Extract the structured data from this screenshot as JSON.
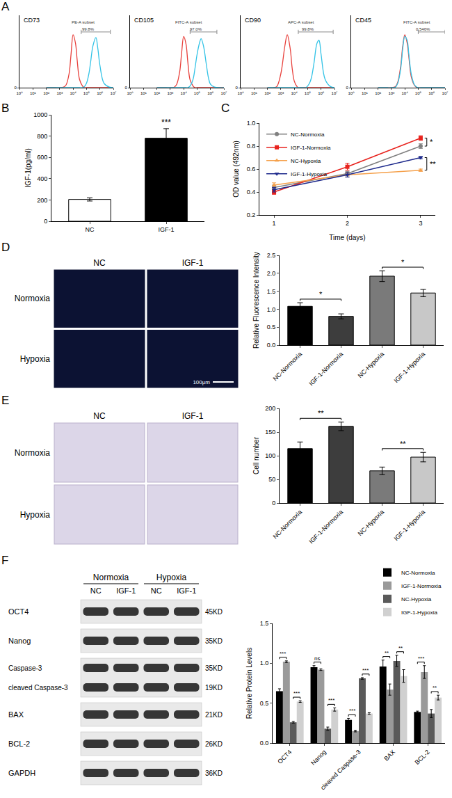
{
  "panel_labels": [
    "A",
    "B",
    "C",
    "D",
    "E",
    "F"
  ],
  "chart_data": [
    {
      "type": "line",
      "title": "CD73",
      "log": "x",
      "x": [
        100,
        300,
        500,
        1000,
        2000,
        3000,
        5000,
        7000,
        10000,
        15000,
        20000,
        30000,
        50000,
        70000,
        100000,
        150000,
        200000,
        300000,
        500000,
        700000,
        1000000,
        2000000,
        5000000,
        10000000
      ],
      "series": [
        {
          "color": "#e8413c",
          "values": [
            0,
            0,
            0,
            0,
            1,
            5,
            25,
            60,
            95,
            80,
            50,
            15,
            3,
            0,
            0,
            0,
            0,
            0,
            0,
            0,
            0,
            0,
            0,
            0
          ]
        },
        {
          "color": "#33c3e6",
          "values": [
            0,
            0,
            0,
            0,
            0,
            0,
            0,
            0,
            0,
            0,
            0,
            0,
            0,
            2,
            8,
            25,
            45,
            75,
            90,
            70,
            40,
            8,
            1,
            0
          ]
        }
      ],
      "xlim": [
        1,
        10000000
      ],
      "xticks": [
        {
          "value": 1,
          "label": "10⁰"
        },
        {
          "value": 10,
          "label": "10¹"
        },
        {
          "value": 100,
          "label": "10²"
        },
        {
          "value": 1000,
          "label": "10³"
        },
        {
          "value": 10000,
          "label": "10⁴"
        },
        {
          "value": 100000,
          "label": "10⁵"
        },
        {
          "value": 1000000,
          "label": "10⁶"
        },
        {
          "value": 10000000,
          "label": "10⁷"
        }
      ],
      "ylim": [
        0,
        130
      ],
      "yticks": [
        0
      ],
      "gate": [
        40000,
        6000000
      ],
      "annotations": [
        "PE-A subset",
        "99.8%"
      ]
    },
    {
      "type": "line",
      "title": "CD105",
      "log": "x",
      "x": [
        100,
        300,
        500,
        1000,
        2000,
        3000,
        5000,
        7000,
        10000,
        15000,
        20000,
        30000,
        50000,
        70000,
        100000,
        150000,
        200000,
        300000,
        500000,
        700000,
        1000000,
        2000000,
        5000000,
        10000000
      ],
      "series": [
        {
          "color": "#e8413c",
          "values": [
            0,
            0,
            0,
            0,
            1,
            6,
            28,
            62,
            92,
            78,
            48,
            14,
            3,
            0,
            0,
            0,
            0,
            0,
            0,
            0,
            0,
            0,
            0,
            0
          ]
        },
        {
          "color": "#33c3e6",
          "values": [
            0,
            0,
            0,
            0,
            0,
            0,
            0,
            0,
            0,
            0,
            0,
            3,
            15,
            35,
            60,
            80,
            88,
            75,
            40,
            18,
            6,
            1,
            0,
            0
          ]
        }
      ],
      "xlim": [
        1,
        10000000
      ],
      "xticks": [
        {
          "value": 1,
          "label": "10⁰"
        },
        {
          "value": 10,
          "label": "10¹"
        },
        {
          "value": 100,
          "label": "10²"
        },
        {
          "value": 1000,
          "label": "10³"
        },
        {
          "value": 10000,
          "label": "10⁴"
        },
        {
          "value": 100000,
          "label": "10⁵"
        },
        {
          "value": 1000000,
          "label": "10⁶"
        },
        {
          "value": 10000000,
          "label": "10⁷"
        }
      ],
      "ylim": [
        0,
        130
      ],
      "yticks": [
        0
      ],
      "gate": [
        30000,
        3000000
      ],
      "annotations": [
        "FITC-A subset",
        "97.0%"
      ]
    },
    {
      "type": "line",
      "title": "CD90",
      "log": "x",
      "x": [
        100,
        300,
        500,
        1000,
        2000,
        3000,
        5000,
        7000,
        10000,
        15000,
        20000,
        30000,
        50000,
        70000,
        100000,
        150000,
        200000,
        300000,
        500000,
        700000,
        1000000,
        2000000,
        5000000,
        10000000
      ],
      "series": [
        {
          "color": "#e8413c",
          "values": [
            0,
            0,
            2,
            25,
            75,
            95,
            70,
            35,
            12,
            3,
            0,
            0,
            0,
            0,
            0,
            0,
            0,
            0,
            0,
            0,
            0,
            0,
            0,
            0
          ]
        },
        {
          "color": "#33c3e6",
          "values": [
            0,
            0,
            0,
            0,
            0,
            0,
            0,
            0,
            0,
            0,
            0,
            0,
            0,
            0,
            3,
            10,
            20,
            45,
            80,
            85,
            60,
            15,
            2,
            0
          ]
        }
      ],
      "xlim": [
        1,
        10000000
      ],
      "xticks": [
        {
          "value": 1,
          "label": "10⁰"
        },
        {
          "value": 10,
          "label": "10¹"
        },
        {
          "value": 100,
          "label": "10²"
        },
        {
          "value": 1000,
          "label": "10³"
        },
        {
          "value": 10000,
          "label": "10⁴"
        },
        {
          "value": 100000,
          "label": "10⁵"
        },
        {
          "value": 1000000,
          "label": "10⁶"
        },
        {
          "value": 10000000,
          "label": "10⁷"
        }
      ],
      "ylim": [
        0,
        130
      ],
      "yticks": [
        0
      ],
      "gate": [
        20000,
        8000000
      ],
      "annotations": [
        "APC-A subset",
        "99.8%"
      ]
    },
    {
      "type": "line",
      "title": "CD45",
      "log": "x",
      "x": [
        100,
        300,
        500,
        1000,
        2000,
        3000,
        5000,
        7000,
        10000,
        15000,
        20000,
        30000,
        50000,
        70000,
        100000,
        150000,
        200000,
        300000,
        500000,
        700000,
        1000000,
        2000000,
        5000000,
        10000000
      ],
      "series": [
        {
          "color": "#e8413c",
          "values": [
            0,
            0,
            0,
            0,
            2,
            10,
            40,
            75,
            95,
            80,
            55,
            20,
            5,
            1,
            0,
            0,
            0,
            0,
            0,
            0,
            0,
            0,
            0,
            0
          ]
        },
        {
          "color": "#33c3e6",
          "values": [
            0,
            0,
            0,
            0,
            1,
            8,
            35,
            70,
            92,
            85,
            60,
            25,
            6,
            2,
            0,
            0,
            0,
            0,
            0,
            0,
            0,
            0,
            0,
            0
          ]
        }
      ],
      "xlim": [
        1,
        10000000
      ],
      "xticks": [
        {
          "value": 1,
          "label": "10⁰"
        },
        {
          "value": 10,
          "label": "10¹"
        },
        {
          "value": 100,
          "label": "10²"
        },
        {
          "value": 1000,
          "label": "10³"
        },
        {
          "value": 10000,
          "label": "10⁴"
        },
        {
          "value": 100000,
          "label": "10⁵"
        },
        {
          "value": 1000000,
          "label": "10⁶"
        },
        {
          "value": 10000000,
          "label": "10⁷"
        }
      ],
      "ylim": [
        0,
        130
      ],
      "yticks": [
        0
      ],
      "gate": [
        100000,
        10000000
      ],
      "annotations": [
        "FITC-A subset",
        "0.546%"
      ]
    },
    {
      "type": "bar",
      "categories": [
        "NC",
        "IGF-1"
      ],
      "values": [
        205,
        780
      ],
      "errors": [
        15,
        90
      ],
      "colors": [
        "#ffffff",
        "#000000"
      ],
      "ylabel": "IGF-1(pg/ml)",
      "ylim": [
        0,
        1000
      ],
      "yticks": [
        0,
        200,
        400,
        600,
        800,
        1000
      ],
      "annotations": [
        {
          "category": "IGF-1",
          "text": "***"
        }
      ]
    },
    {
      "type": "line",
      "x": [
        1,
        2,
        3
      ],
      "xlabel": "Time (days)",
      "ylabel": "OD value (492nm)",
      "xlim": [
        0.8,
        3.2
      ],
      "xticks": [
        1,
        2,
        3
      ],
      "ylim": [
        0.2,
        1.0
      ],
      "yticks": [
        0.2,
        0.4,
        0.6,
        0.8,
        {
          "value": 1.0,
          "label": "1.0"
        }
      ],
      "legend": "top left",
      "series": [
        {
          "name": "NC-Normoxia",
          "color": "#808080",
          "marker": "circle",
          "values": [
            0.44,
            0.56,
            0.8
          ],
          "errors": [
            0.02,
            0.02,
            0.02
          ]
        },
        {
          "name": "IGF-1-Normoxia",
          "color": "#e8231e",
          "marker": "square",
          "values": [
            0.4,
            0.62,
            0.87
          ],
          "errors": [
            0.02,
            0.03,
            0.02
          ]
        },
        {
          "name": "NC-Hypoxia",
          "color": "#f5a04a",
          "marker": "triangle-up",
          "values": [
            0.46,
            0.55,
            0.59
          ],
          "errors": [
            0.02,
            0.02,
            0.01
          ]
        },
        {
          "name": "IGF-1-Hypoxia",
          "color": "#1e2a8c",
          "marker": "triangle-down",
          "values": [
            0.42,
            0.55,
            0.7
          ],
          "errors": [
            0.02,
            0.02,
            0.01
          ]
        }
      ],
      "annotations": [
        {
          "text": "*",
          "between": [
            1,
            0
          ]
        },
        {
          "text": "**",
          "between": [
            3,
            2
          ]
        }
      ]
    },
    {
      "type": "bar",
      "categories": [
        "NC-Normoxia",
        "IGF-1-Normoxia",
        "NC-Hypoxia",
        "IGF-1-Hypoxia"
      ],
      "values": [
        1.08,
        0.8,
        1.92,
        1.45
      ],
      "errors": [
        0.1,
        0.07,
        0.15,
        0.1
      ],
      "colors": [
        "#000000",
        "#3d3d3d",
        "#7a7a7a",
        "#c8c8c8"
      ],
      "ylabel": "Relative Fluorescence Intensity",
      "ylim": [
        0,
        2.5
      ],
      "yticks": [
        {
          "value": 0,
          "label": "0.0"
        },
        0.5,
        {
          "value": 1,
          "label": "1.0"
        },
        1.5,
        {
          "value": 2,
          "label": "2.0"
        },
        2.5
      ],
      "annotations": [
        {
          "between": [
            0,
            1
          ],
          "text": "*"
        },
        {
          "between": [
            2,
            3
          ],
          "text": "*"
        }
      ]
    },
    {
      "type": "bar",
      "categories": [
        "NC-Normoxia",
        "IGF-1-Normoxia",
        "NC-Hypoxia",
        "IGF-1-Hypoxia"
      ],
      "values": [
        115,
        162,
        68,
        97
      ],
      "errors": [
        14,
        9,
        8,
        10
      ],
      "colors": [
        "#000000",
        "#3d3d3d",
        "#7a7a7a",
        "#c8c8c8"
      ],
      "ylabel": "Cell number",
      "ylim": [
        0,
        200
      ],
      "yticks": [
        0,
        50,
        100,
        150,
        200
      ],
      "annotations": [
        {
          "between": [
            0,
            1
          ],
          "text": "**"
        },
        {
          "between": [
            2,
            3
          ],
          "text": "**"
        }
      ]
    },
    {
      "type": "bar",
      "categories": [
        "OCT4",
        "Nanog",
        "cleaved Caspase-3",
        "BAX",
        "BCL-2"
      ],
      "ylabel": "Relative Protein Levels",
      "legend": "top right",
      "ylim": [
        0,
        1.5
      ],
      "yticks": [
        {
          "value": 0,
          "label": "0.0"
        },
        0.5,
        {
          "value": 1,
          "label": "1.0"
        },
        1.5
      ],
      "series": [
        {
          "name": "NC-Normoxia",
          "color": "#000000",
          "values": [
            0.65,
            0.95,
            0.29,
            0.96,
            0.39
          ],
          "errors": [
            0.03,
            0.02,
            0.02,
            0.08,
            0.01
          ]
        },
        {
          "name": "IGF-1-Normoxia",
          "color": "#9a9a9a",
          "values": [
            1.02,
            0.92,
            0.15,
            0.67,
            0.89
          ],
          "errors": [
            0.01,
            0.01,
            0.01,
            0.07,
            0.08
          ]
        },
        {
          "name": "NC-Hypoxia",
          "color": "#5a5a5a",
          "values": [
            0.26,
            0.18,
            0.81,
            1.03,
            0.37
          ],
          "errors": [
            0.01,
            0.02,
            0.01,
            0.07,
            0.05
          ]
        },
        {
          "name": "IGF-1-Hypoxia",
          "color": "#d0d0d0",
          "values": [
            0.52,
            0.42,
            0.37,
            0.84,
            0.57
          ],
          "errors": [
            0.01,
            0.02,
            0.01,
            0.08,
            0.03
          ]
        }
      ],
      "annotations": [
        {
          "category": "OCT4",
          "between": [
            0,
            1
          ],
          "text": "***"
        },
        {
          "category": "OCT4",
          "between": [
            2,
            3
          ],
          "text": "***"
        },
        {
          "category": "Nanog",
          "between": [
            0,
            1
          ],
          "text": "ns"
        },
        {
          "category": "Nanog",
          "between": [
            2,
            3
          ],
          "text": "***"
        },
        {
          "category": "cleaved Caspase-3",
          "between": [
            0,
            1
          ],
          "text": "***"
        },
        {
          "category": "cleaved Caspase-3",
          "between": [
            2,
            3
          ],
          "text": "***"
        },
        {
          "category": "BAX",
          "between": [
            0,
            1
          ],
          "text": "**"
        },
        {
          "category": "BAX",
          "between": [
            2,
            3
          ],
          "text": "**"
        },
        {
          "category": "BCL-2",
          "between": [
            0,
            1
          ],
          "text": "***"
        },
        {
          "category": "BCL-2",
          "between": [
            2,
            3
          ],
          "text": "**"
        }
      ]
    }
  ],
  "micrographs": {
    "D": {
      "columns": [
        "NC",
        "IGF-1"
      ],
      "rows": [
        "Normoxia",
        "Hypoxia"
      ],
      "scale_bar": "100μm"
    },
    "E": {
      "columns": [
        "NC",
        "IGF-1"
      ],
      "rows": [
        "Normoxia",
        "Hypoxia"
      ]
    }
  },
  "blot": {
    "groups": [
      "Normoxia",
      "Hypoxia"
    ],
    "lanes": [
      "NC",
      "IGF-1",
      "NC",
      "IGF-1"
    ],
    "rows": [
      {
        "labels": [
          "OCT4"
        ],
        "sizes": [
          "45KD"
        ]
      },
      {
        "labels": [
          "Nanog"
        ],
        "sizes": [
          "35KD"
        ]
      },
      {
        "labels": [
          "Caspase-3",
          "cleaved Caspase-3"
        ],
        "sizes": [
          "35KD",
          "19KD"
        ]
      },
      {
        "labels": [
          "BAX"
        ],
        "sizes": [
          "21KD"
        ]
      },
      {
        "labels": [
          "BCL-2"
        ],
        "sizes": [
          "26KD"
        ]
      },
      {
        "labels": [
          "GAPDH"
        ],
        "sizes": [
          "36KD"
        ]
      }
    ]
  }
}
